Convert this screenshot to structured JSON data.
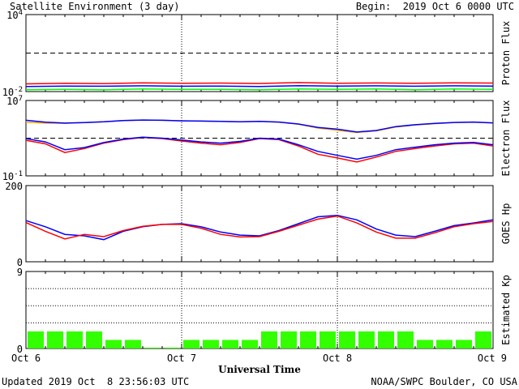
{
  "header": {
    "title": "Satellite Environment (3 day)",
    "begin": "Begin:  2019 Oct 6 0000 UTC"
  },
  "footer": {
    "updated": "Updated 2019 Oct  8 23:56:03 UTC",
    "credit": "NOAA/SWPC Boulder, CO USA"
  },
  "chart_data": [
    {
      "type": "line",
      "ylabel": "Proton Flux",
      "yscale": "log",
      "ylim": [
        0.01,
        10000
      ],
      "tick_labels": [
        "10^4",
        "10^-2"
      ],
      "dashed_threshold": 10,
      "x": [
        0,
        6,
        12,
        18,
        24,
        30,
        36,
        42,
        48,
        54,
        60,
        66,
        72
      ],
      "series": [
        {
          "color": "#ff0000",
          "values": [
            0.04,
            0.045,
            0.042,
            0.048,
            0.044,
            0.046,
            0.043,
            0.05,
            0.045,
            0.047,
            0.044,
            0.048,
            0.046
          ]
        },
        {
          "color": "#0000ff",
          "values": [
            0.025,
            0.027,
            0.026,
            0.028,
            0.026,
            0.027,
            0.025,
            0.029,
            0.027,
            0.028,
            0.026,
            0.028,
            0.027
          ]
        },
        {
          "color": "#00ff00",
          "values": [
            0.014,
            0.015,
            0.014,
            0.016,
            0.015,
            0.015,
            0.014,
            0.016,
            0.015,
            0.016,
            0.014,
            0.016,
            0.015
          ]
        }
      ]
    },
    {
      "type": "line",
      "ylabel": "Electron Flux",
      "yscale": "log",
      "ylim": [
        0.1,
        10000000
      ],
      "tick_labels": [
        "10^7",
        "10^-1"
      ],
      "dashed_threshold": 1000,
      "x": [
        0,
        3,
        6,
        9,
        12,
        15,
        18,
        21,
        24,
        27,
        30,
        33,
        36,
        39,
        42,
        45,
        48,
        51,
        54,
        57,
        60,
        63,
        66,
        69,
        72
      ],
      "series": [
        {
          "color": "#ffa500",
          "values": [
            50000,
            40000,
            38000,
            45000,
            55000,
            75000,
            85000,
            80000,
            70000,
            65000,
            60000,
            55000,
            60000,
            50000,
            30000,
            12000,
            7000,
            4000,
            6000,
            15000,
            25000,
            35000,
            45000,
            50000,
            40000
          ]
        },
        {
          "color": "#0000ff",
          "values": [
            80000,
            50000,
            40000,
            45000,
            55000,
            75000,
            85000,
            80000,
            70000,
            65000,
            60000,
            55000,
            62000,
            52000,
            32000,
            14000,
            9000,
            4500,
            6500,
            17000,
            27000,
            37000,
            47000,
            52000,
            42000
          ]
        },
        {
          "color": "#ff0000",
          "values": [
            600,
            250,
            30,
            80,
            300,
            700,
            1200,
            900,
            500,
            300,
            200,
            350,
            900,
            700,
            150,
            20,
            8,
            3,
            10,
            40,
            80,
            150,
            250,
            300,
            150
          ]
        },
        {
          "color": "#0000ff",
          "values": [
            900,
            400,
            60,
            100,
            350,
            800,
            1300,
            1000,
            650,
            400,
            300,
            450,
            1000,
            800,
            200,
            40,
            15,
            6,
            15,
            60,
            110,
            200,
            300,
            350,
            200
          ]
        }
      ]
    },
    {
      "type": "line",
      "ylabel": "GOES Hp",
      "ylim": [
        0,
        200
      ],
      "yticks": [
        0,
        200
      ],
      "x": [
        0,
        3,
        6,
        9,
        12,
        15,
        18,
        21,
        24,
        27,
        30,
        33,
        36,
        39,
        42,
        45,
        48,
        51,
        54,
        57,
        60,
        63,
        66,
        69,
        72
      ],
      "series": [
        {
          "color": "#0000ff",
          "values": [
            108,
            92,
            72,
            68,
            58,
            80,
            92,
            98,
            100,
            92,
            78,
            70,
            68,
            82,
            100,
            118,
            122,
            110,
            86,
            70,
            66,
            80,
            95,
            102,
            110
          ]
        },
        {
          "color": "#ff0000",
          "values": [
            103,
            80,
            60,
            72,
            66,
            82,
            93,
            98,
            98,
            88,
            72,
            65,
            66,
            80,
            96,
            112,
            120,
            102,
            78,
            62,
            62,
            76,
            92,
            100,
            106
          ]
        }
      ]
    },
    {
      "type": "bar",
      "ylabel": "Estimated Kp",
      "ylim": [
        0,
        9
      ],
      "yticks": [
        0,
        9
      ],
      "bar_color": "#33ff00",
      "values": [
        2,
        2,
        2,
        2,
        1,
        1,
        0.1,
        0.1,
        1,
        1,
        1,
        1,
        2,
        2,
        2,
        2,
        2,
        2,
        2,
        2,
        1,
        1,
        1,
        2
      ]
    }
  ],
  "x_axis": {
    "label": "Universal Time",
    "tick_labels": [
      "Oct 6",
      "Oct 7",
      "Oct 8",
      "Oct 9"
    ]
  }
}
